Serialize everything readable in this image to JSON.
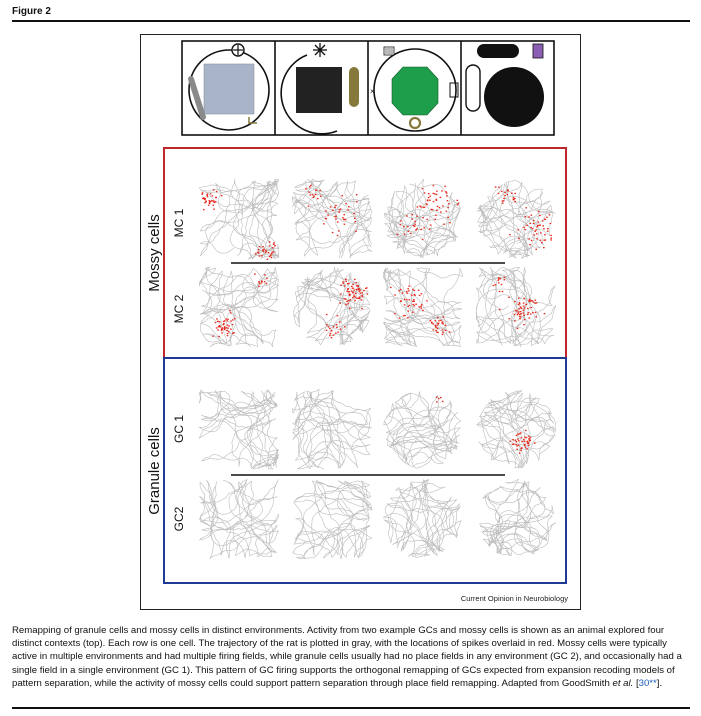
{
  "figure": {
    "label": "Figure 2",
    "group_mossy": "Mossy cells",
    "group_granule": "Granule cells",
    "rows": [
      "MC 1",
      "MC 2",
      "GC 1",
      "GC2"
    ],
    "credit": "Current Opinion in Neurobiology",
    "colors": {
      "mossy_border": "#c0272d",
      "granule_border": "#1f3a93",
      "spike": "#e8291c",
      "trajectory": "#bcbcbc",
      "cue_card_gray": "#a9b4c8",
      "cue_card_black": "#222222",
      "cue_card_green": "#1e9e4a",
      "bar_olive": "#857a3c",
      "purple_cue": "#8b5fb3"
    },
    "icons": [
      "environment-1-circle-gray-square",
      "environment-2-black-square-olive-bar",
      "environment-3-octagon-green",
      "environment-4-black-disc"
    ]
  },
  "caption": {
    "text": "Remapping of granule cells and mossy cells in distinct environments. Activity from two example GCs and mossy cells is shown as an animal explored four distinct contexts (top). Each row is one cell. The trajectory of the rat is plotted in gray, with the locations of spikes overlaid in red. Mossy cells were typically active in multiple environments and had multiple firing fields, while granule cells usually had no place fields in any environment (GC 2), and occasionally had a single field in a single environment (GC 1). This pattern of GC firing supports the orthogonal remapping of GCs expected from expansion recoding models of pattern separation, while the activity of mossy cells could support pattern separation through place field remapping. Adapted from GoodSmith ",
    "et_al": "et al.",
    "ref_open": " [",
    "ref": "30**",
    "ref_close": "]."
  }
}
